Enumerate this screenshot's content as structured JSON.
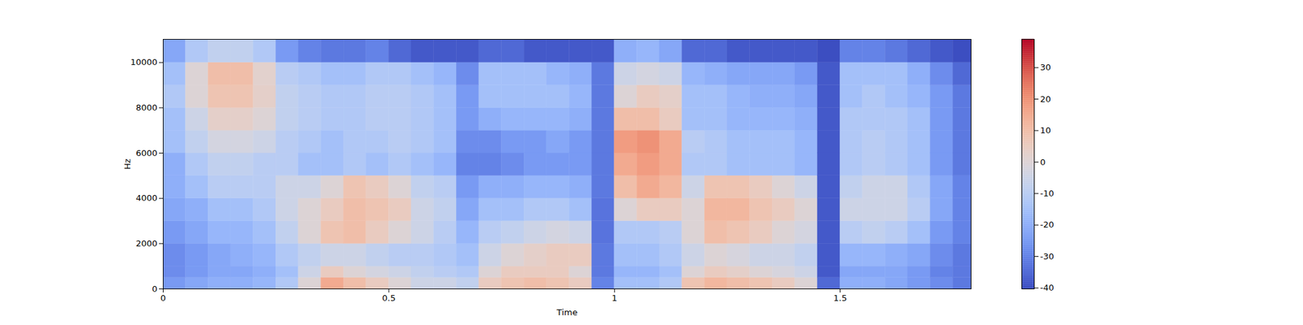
{
  "chart_data": {
    "type": "heatmap",
    "x_label": "Time",
    "y_label": "Hz",
    "x": [
      0,
      0.05,
      0.1,
      0.15,
      0.2,
      0.25,
      0.3,
      0.35,
      0.4,
      0.45,
      0.5,
      0.55,
      0.6,
      0.65,
      0.7,
      0.75,
      0.8,
      0.85,
      0.9,
      0.95,
      1,
      1.05,
      1.1,
      1.15,
      1.2,
      1.25,
      1.3,
      1.35,
      1.4,
      1.45,
      1.5,
      1.55,
      1.6,
      1.65,
      1.7,
      1.75
    ],
    "y": [
      0,
      500,
      1000,
      2000,
      3000,
      4000,
      5000,
      6000,
      7000,
      8000,
      9000,
      10000
    ],
    "cells": [
      [
        -25,
        -22,
        -20,
        -20,
        -18,
        -12,
        0,
        15,
        10,
        5,
        0,
        -5,
        -5,
        -8,
        5,
        8,
        10,
        8,
        5,
        -30,
        -15,
        -15,
        -12,
        8,
        12,
        10,
        8,
        5,
        0,
        -35,
        -20,
        -20,
        -22,
        -25,
        -28,
        -32
      ],
      [
        -28,
        -25,
        -22,
        -22,
        -20,
        -15,
        -5,
        5,
        0,
        -3,
        -5,
        -8,
        -10,
        -12,
        0,
        5,
        5,
        5,
        0,
        -32,
        -18,
        -18,
        -15,
        0,
        5,
        3,
        0,
        -2,
        -5,
        -38,
        -22,
        -22,
        -22,
        -25,
        -30,
        -32
      ],
      [
        -28,
        -25,
        -22,
        -20,
        -18,
        -12,
        -8,
        -5,
        -5,
        -8,
        -10,
        -10,
        -12,
        -15,
        -5,
        0,
        3,
        5,
        5,
        -32,
        -15,
        -15,
        -12,
        -5,
        0,
        -2,
        -5,
        -5,
        -8,
        -38,
        -18,
        -18,
        -20,
        -22,
        -28,
        -32
      ],
      [
        -25,
        -22,
        -18,
        -18,
        -15,
        -8,
        0,
        8,
        10,
        5,
        0,
        -5,
        -10,
        -18,
        -10,
        -8,
        -5,
        -3,
        -5,
        -33,
        -12,
        -12,
        -10,
        0,
        10,
        8,
        5,
        0,
        -3,
        -38,
        -10,
        -8,
        -10,
        -15,
        -25,
        -30
      ],
      [
        -22,
        -20,
        -15,
        -15,
        -12,
        -5,
        0,
        5,
        10,
        8,
        5,
        -5,
        -8,
        -22,
        -15,
        -15,
        -12,
        -12,
        -15,
        -33,
        0,
        5,
        5,
        0,
        12,
        12,
        8,
        5,
        0,
        -38,
        -5,
        -5,
        -5,
        -10,
        -22,
        -30
      ],
      [
        -20,
        -15,
        -10,
        -10,
        -10,
        -5,
        -5,
        0,
        8,
        5,
        0,
        -8,
        -10,
        -25,
        -20,
        -20,
        -18,
        -18,
        -20,
        -32,
        10,
        15,
        12,
        -5,
        8,
        8,
        5,
        0,
        -5,
        -38,
        -8,
        -5,
        -5,
        -12,
        -22,
        -30
      ],
      [
        -20,
        -12,
        -8,
        -8,
        -10,
        -10,
        -15,
        -15,
        -12,
        -15,
        -12,
        -15,
        -18,
        -30,
        -30,
        -28,
        -25,
        -25,
        -25,
        -32,
        15,
        18,
        15,
        -12,
        -12,
        -15,
        -15,
        -15,
        -18,
        -38,
        -12,
        -10,
        -12,
        -15,
        -25,
        -32
      ],
      [
        -15,
        -8,
        -3,
        -3,
        -5,
        -10,
        -12,
        -15,
        -12,
        -12,
        -10,
        -12,
        -15,
        -28,
        -28,
        -25,
        -25,
        -22,
        -25,
        -32,
        18,
        20,
        15,
        -10,
        -12,
        -15,
        -15,
        -15,
        -18,
        -38,
        -12,
        -10,
        -12,
        -15,
        -25,
        -32
      ],
      [
        -15,
        -5,
        3,
        3,
        0,
        -8,
        -10,
        -12,
        -12,
        -10,
        -10,
        -12,
        -15,
        -25,
        -20,
        -18,
        -18,
        -18,
        -20,
        -32,
        10,
        10,
        5,
        -15,
        -15,
        -18,
        -18,
        -18,
        -20,
        -38,
        -12,
        -12,
        -12,
        -15,
        -25,
        -32
      ],
      [
        -12,
        0,
        8,
        8,
        3,
        -8,
        -10,
        -12,
        -12,
        -10,
        -10,
        -12,
        -15,
        -25,
        -15,
        -15,
        -15,
        -15,
        -18,
        -32,
        0,
        5,
        3,
        -15,
        -15,
        -18,
        -20,
        -20,
        -22,
        -38,
        -15,
        -12,
        -15,
        -18,
        -25,
        -32
      ],
      [
        -15,
        0,
        10,
        10,
        2,
        -10,
        -12,
        -15,
        -15,
        -12,
        -12,
        -15,
        -18,
        -28,
        -15,
        -15,
        -15,
        -18,
        -20,
        -32,
        -5,
        -3,
        -5,
        -18,
        -20,
        -22,
        -22,
        -22,
        -25,
        -38,
        -15,
        -15,
        -15,
        -20,
        -28,
        -35
      ],
      [
        -22,
        -12,
        -8,
        -8,
        -12,
        -25,
        -30,
        -32,
        -32,
        -30,
        -35,
        -38,
        -38,
        -38,
        -35,
        -35,
        -38,
        -38,
        -38,
        -38,
        -20,
        -18,
        -22,
        -35,
        -35,
        -38,
        -38,
        -38,
        -38,
        -40,
        -30,
        -30,
        -32,
        -35,
        -38,
        -40
      ]
    ],
    "xlim": [
      0,
      1.79
    ],
    "ylim": [
      0,
      11025
    ],
    "xticks": [
      0,
      0.5,
      1,
      1.5
    ],
    "yticks": [
      0,
      2000,
      4000,
      6000,
      8000,
      10000
    ],
    "colorbar": {
      "range": [
        -40.3,
        39
      ],
      "ticks": [
        -40,
        -30,
        -20,
        -10,
        0,
        10,
        20,
        30
      ]
    }
  }
}
